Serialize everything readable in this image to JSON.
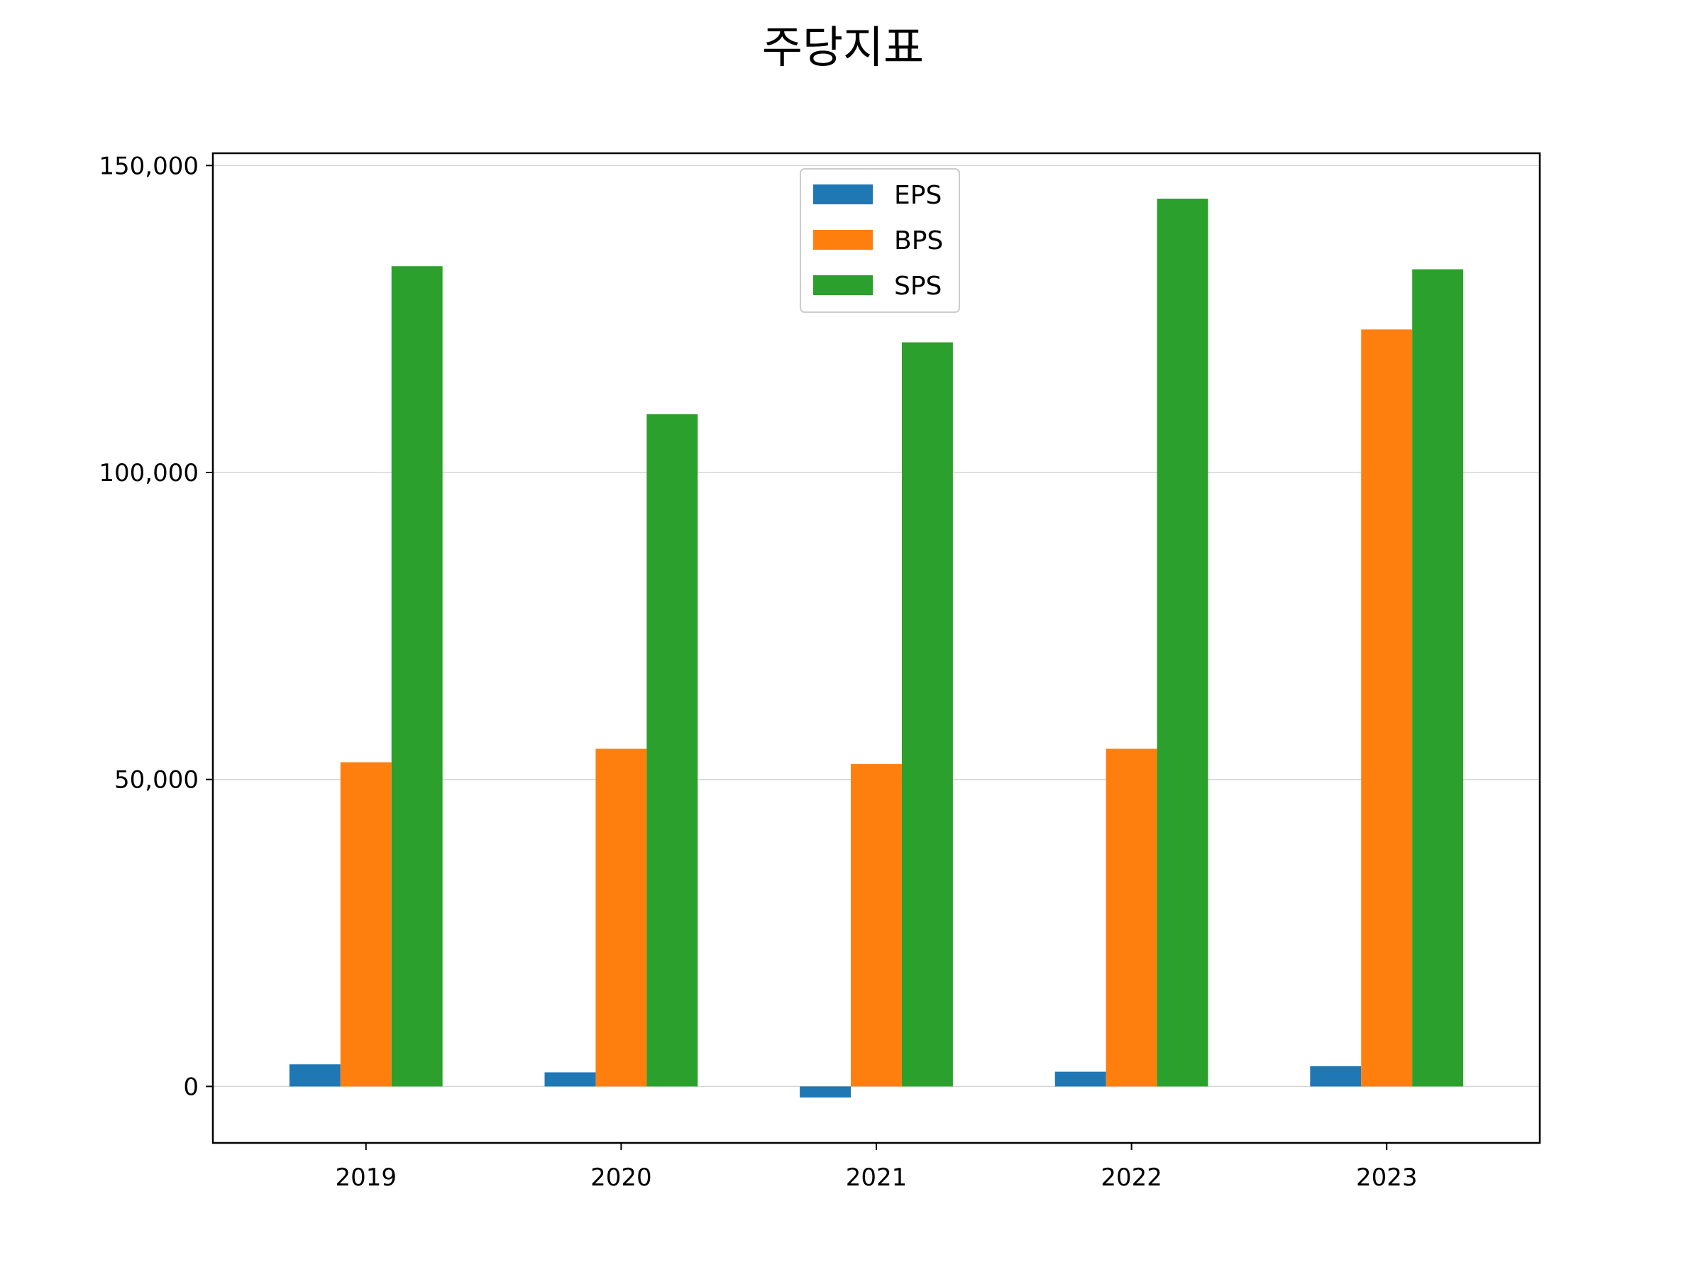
{
  "chart_data": {
    "type": "bar",
    "title": "주당지표",
    "xlabel": "",
    "ylabel": "",
    "categories": [
      "2019",
      "2020",
      "2021",
      "2022",
      "2023"
    ],
    "series": [
      {
        "name": "EPS",
        "color": "#1f77b4",
        "values": [
          3600,
          2300,
          -1800,
          2400,
          3300
        ]
      },
      {
        "name": "BPS",
        "color": "#ff7f0e",
        "values": [
          52800,
          55000,
          52500,
          55000,
          123300
        ]
      },
      {
        "name": "SPS",
        "color": "#2ca02c",
        "values": [
          133600,
          109500,
          121200,
          144600,
          133100
        ]
      }
    ],
    "ylim": [
      -9200,
      152000
    ],
    "yticks": [
      0,
      50000,
      100000,
      150000
    ],
    "ytick_labels": [
      "0",
      "50,000",
      "100,000",
      "150,000"
    ],
    "grid": true,
    "legend_position": "upper center"
  }
}
